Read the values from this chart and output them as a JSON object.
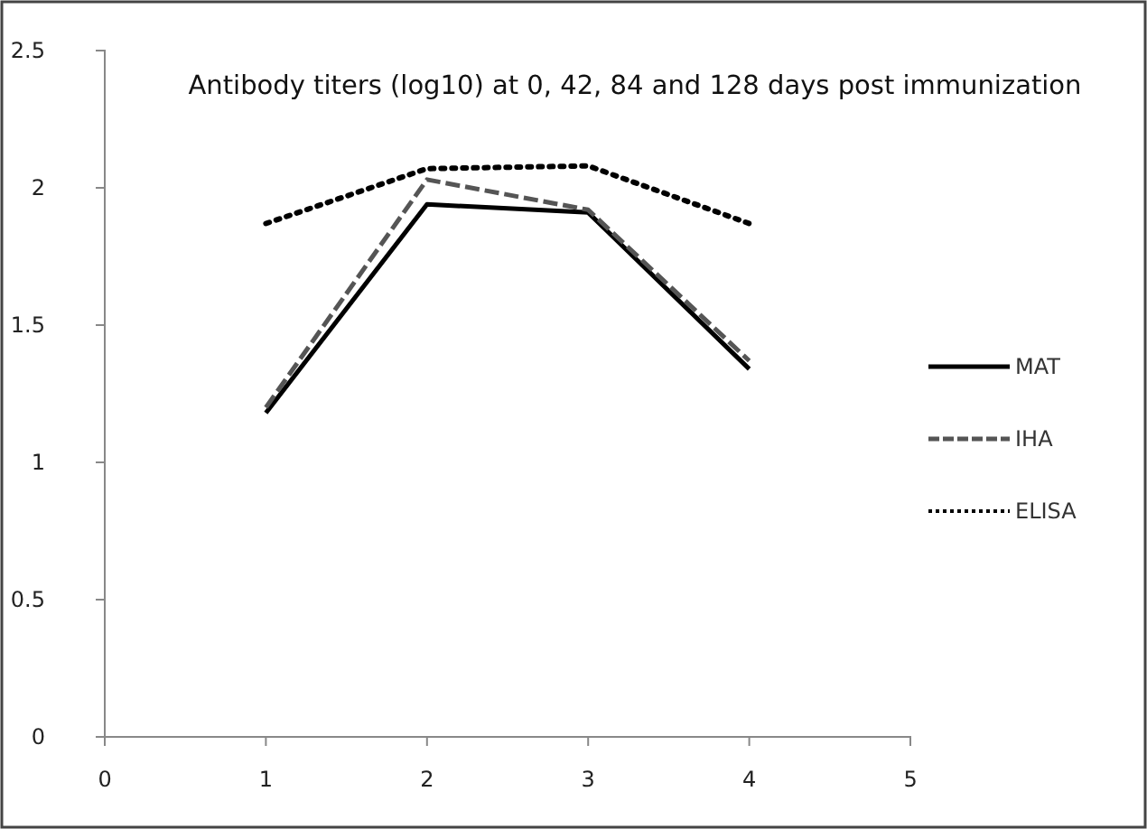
{
  "chart_data": {
    "type": "line",
    "title": "Antibody titers (log10) at 0, 42, 84 and 128  days post immunization",
    "x": [
      1,
      2,
      3,
      4
    ],
    "series": [
      {
        "name": "MAT",
        "color": "#000000",
        "values": [
          1.18,
          1.94,
          1.91,
          1.34
        ],
        "line_style": "solid"
      },
      {
        "name": "IHA",
        "color": "#555555",
        "values": [
          1.2,
          2.03,
          1.92,
          1.37
        ],
        "line_style": "dashed"
      },
      {
        "name": "ELISA",
        "color": "#000000",
        "values": [
          1.87,
          2.07,
          2.08,
          1.87
        ],
        "line_style": "dotted"
      }
    ],
    "xlim": [
      0,
      5
    ],
    "xticks": [
      0,
      1,
      2,
      3,
      4,
      5
    ],
    "ylim": [
      0,
      2.5
    ],
    "yticks": [
      0,
      0.5,
      1,
      1.5,
      2,
      2.5
    ],
    "grid": false,
    "legend": "right",
    "marker": "none"
  }
}
